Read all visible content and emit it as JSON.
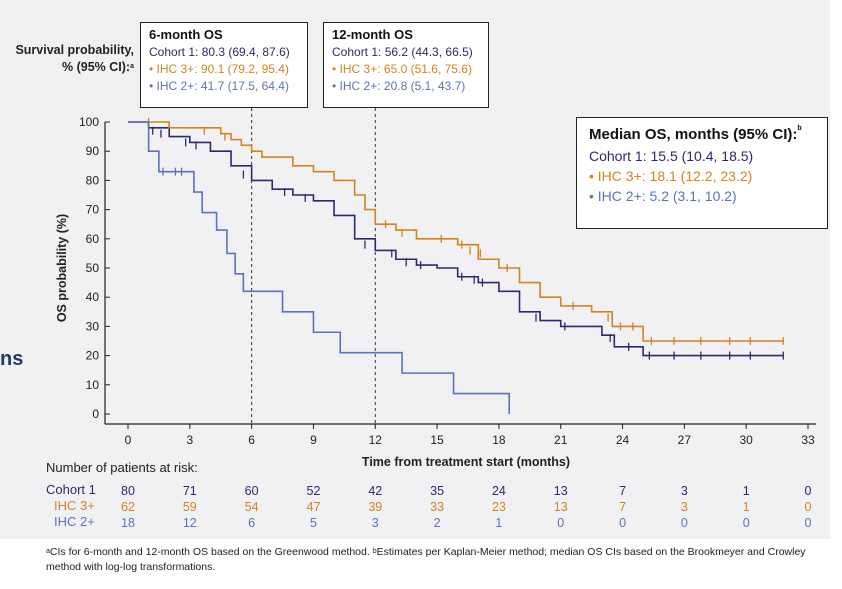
{
  "colors": {
    "cohort": "#2b2a6b",
    "ihc3": "#d2841f",
    "ihc2": "#5b74b8",
    "frame": "#222222"
  },
  "left_fragment": "ns",
  "survival_label": {
    "line1": "Survival probability,",
    "line2": "% (95% CI):",
    "mark": "a"
  },
  "box_6m": {
    "title": "6-month OS",
    "cohort": "Cohort 1: 80.3 (69.4, 87.6)",
    "ihc3": "IHC 3+: 90.1 (79.2, 95.4)",
    "ihc2": "IHC 2+: 41.7 (17.5, 64.4)"
  },
  "box_12m": {
    "title": "12-month OS",
    "cohort": "Cohort 1: 56.2 (44.3, 66.5)",
    "ihc3": "IHC 3+: 65.0 (51.6, 75.6)",
    "ihc2": "IHC 2+: 20.8 (5.1, 43.7)"
  },
  "median_box": {
    "title": "Median OS, months (95% CI):",
    "mark": "b",
    "cohort": "Cohort 1: 15.5 (10.4, 18.5)",
    "ihc3": "IHC 3+: 18.1 (12.2, 23.2)",
    "ihc2": "IHC 2+: 5.2 (3.1, 10.2)"
  },
  "bullet": "•",
  "chart_data": {
    "type": "line",
    "subtype": "kaplan-meier",
    "xlabel": "Time from treatment start (months)",
    "ylabel": "OS probability (%)",
    "xlim": [
      0,
      33
    ],
    "ylim": [
      0,
      100
    ],
    "xticks": [
      0,
      3,
      6,
      9,
      12,
      15,
      18,
      21,
      24,
      27,
      30,
      33
    ],
    "yticks": [
      0,
      10,
      20,
      30,
      40,
      50,
      60,
      70,
      80,
      90,
      100
    ],
    "reference_lines_x": [
      6,
      12
    ],
    "series": [
      {
        "name": "Cohort 1",
        "color": "#2b2a6b",
        "steps": [
          [
            0,
            100
          ],
          [
            1,
            98
          ],
          [
            2,
            95
          ],
          [
            3,
            93
          ],
          [
            4,
            90
          ],
          [
            5,
            85
          ],
          [
            6,
            80
          ],
          [
            7,
            77
          ],
          [
            8,
            75
          ],
          [
            9,
            73
          ],
          [
            10,
            68
          ],
          [
            11,
            60
          ],
          [
            12,
            56
          ],
          [
            13,
            53
          ],
          [
            14,
            51
          ],
          [
            15,
            50
          ],
          [
            16,
            47
          ],
          [
            17,
            45
          ],
          [
            18,
            42
          ],
          [
            19,
            35
          ],
          [
            20,
            32
          ],
          [
            21,
            30
          ],
          [
            23,
            27
          ],
          [
            23.6,
            23
          ],
          [
            25,
            20
          ],
          [
            31.8,
            20
          ]
        ],
        "censored": [
          [
            1.2,
            97
          ],
          [
            1.6,
            96
          ],
          [
            2.8,
            93
          ],
          [
            3.3,
            92
          ],
          [
            5.6,
            82
          ],
          [
            7.6,
            76
          ],
          [
            8.6,
            74
          ],
          [
            11.5,
            58
          ],
          [
            12.8,
            55
          ],
          [
            13.5,
            52
          ],
          [
            14.2,
            51
          ],
          [
            16.2,
            47
          ],
          [
            16.8,
            46
          ],
          [
            17.2,
            45
          ],
          [
            19.8,
            33
          ],
          [
            21.2,
            30
          ],
          [
            23.4,
            26
          ],
          [
            24.3,
            23
          ],
          [
            25.3,
            20
          ],
          [
            26.5,
            20
          ],
          [
            27.8,
            20
          ],
          [
            29.2,
            20
          ],
          [
            30.2,
            20
          ],
          [
            31.8,
            20
          ]
        ]
      },
      {
        "name": "IHC 3+",
        "color": "#d2841f",
        "steps": [
          [
            0,
            100
          ],
          [
            2,
            98
          ],
          [
            4.5,
            96
          ],
          [
            5,
            94
          ],
          [
            5.5,
            92
          ],
          [
            6,
            90
          ],
          [
            6.5,
            88
          ],
          [
            8,
            85
          ],
          [
            9,
            83
          ],
          [
            10,
            80
          ],
          [
            11,
            75
          ],
          [
            11.5,
            70
          ],
          [
            12,
            65
          ],
          [
            13,
            63
          ],
          [
            14,
            60
          ],
          [
            16,
            58
          ],
          [
            17,
            53
          ],
          [
            18,
            50
          ],
          [
            19,
            45
          ],
          [
            20,
            40
          ],
          [
            21,
            37
          ],
          [
            22.5,
            35
          ],
          [
            23.5,
            30
          ],
          [
            25,
            25
          ],
          [
            31.8,
            25
          ]
        ],
        "censored": [
          [
            1,
            100
          ],
          [
            3.7,
            97
          ],
          [
            4.7,
            95
          ],
          [
            12.5,
            65
          ],
          [
            13.3,
            62
          ],
          [
            15.2,
            60
          ],
          [
            16.2,
            58
          ],
          [
            16.6,
            56
          ],
          [
            17.1,
            55
          ],
          [
            18.4,
            50
          ],
          [
            21.6,
            37
          ],
          [
            23.3,
            33
          ],
          [
            23.9,
            30
          ],
          [
            24.5,
            30
          ],
          [
            25.4,
            25
          ],
          [
            26.5,
            25
          ],
          [
            27.8,
            25
          ],
          [
            29.2,
            25
          ],
          [
            30.2,
            25
          ],
          [
            31.8,
            25
          ]
        ]
      },
      {
        "name": "IHC 2+",
        "color": "#5b74b8",
        "steps": [
          [
            0,
            100
          ],
          [
            1,
            90
          ],
          [
            1.5,
            83
          ],
          [
            3.2,
            76
          ],
          [
            3.6,
            69
          ],
          [
            4.3,
            63
          ],
          [
            4.8,
            55
          ],
          [
            5.2,
            48
          ],
          [
            5.6,
            42
          ],
          [
            7.5,
            35
          ],
          [
            9,
            28
          ],
          [
            10.3,
            21
          ],
          [
            13.3,
            14
          ],
          [
            15.8,
            7
          ],
          [
            18.5,
            0
          ]
        ],
        "censored": [
          [
            1.7,
            83
          ],
          [
            2.3,
            83
          ],
          [
            2.6,
            83
          ]
        ]
      }
    ],
    "risk_table": {
      "title": "Number of patients at risk:",
      "times": [
        0,
        3,
        6,
        9,
        12,
        15,
        18,
        21,
        24,
        27,
        30,
        33
      ],
      "rows": [
        {
          "label": "Cohort 1",
          "values": [
            80,
            71,
            60,
            52,
            42,
            35,
            24,
            13,
            7,
            3,
            1,
            0
          ]
        },
        {
          "label": "IHC 3+",
          "values": [
            62,
            59,
            54,
            47,
            39,
            33,
            23,
            13,
            7,
            3,
            1,
            0
          ]
        },
        {
          "label": "IHC 2+",
          "values": [
            18,
            12,
            6,
            5,
            3,
            2,
            1,
            0,
            0,
            0,
            0,
            0
          ]
        }
      ]
    }
  },
  "footnote": {
    "a_mark": "a",
    "a_text": "CIs for 6-month and 12-month OS based on the Greenwood method.",
    "b_mark": "b",
    "b_text": "Estimates per Kaplan-Meier method; median OS CIs based on the Brookmeyer and Crowley method with log-log transformations."
  }
}
